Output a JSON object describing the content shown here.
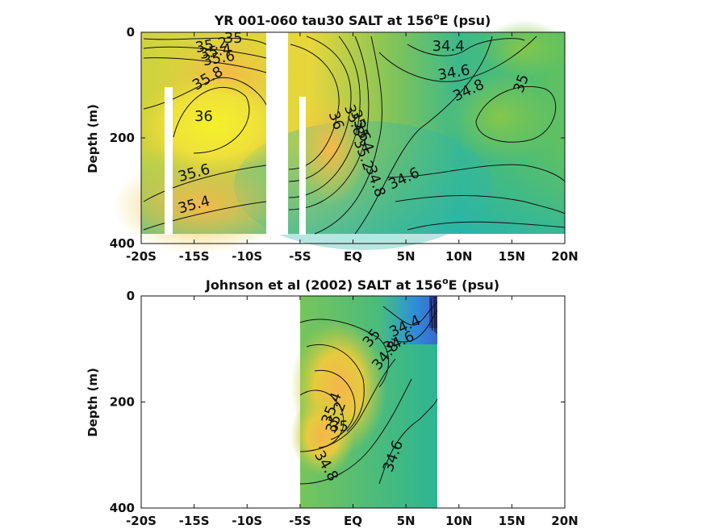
{
  "chart_data": [
    {
      "type": "heatmap",
      "title_main": "YR 001-060 tau30 SALT at 156",
      "title_sup": "o",
      "title_end": "E (psu)",
      "ylabel": "Depth (m)",
      "xticks": [
        {
          "v": -20,
          "label": "-20S"
        },
        {
          "v": -15,
          "label": "-15S"
        },
        {
          "v": -10,
          "label": "-10S"
        },
        {
          "v": -5,
          "label": "-5S"
        },
        {
          "v": 0,
          "label": "EQ"
        },
        {
          "v": 5,
          "label": "5N"
        },
        {
          "v": 10,
          "label": "10N"
        },
        {
          "v": 15,
          "label": "15N"
        },
        {
          "v": 20,
          "label": "20N"
        }
      ],
      "yticks": [
        {
          "v": 0,
          "label": "0"
        },
        {
          "v": 200,
          "label": "200"
        },
        {
          "v": 400,
          "label": "400"
        }
      ],
      "xlim": [
        -20,
        20
      ],
      "ylim": [
        400,
        0
      ],
      "data_extent": {
        "x": [
          -20,
          20
        ],
        "y": [
          0,
          385
        ]
      },
      "gaps": [
        {
          "x0": -17.6,
          "x1": -16.8,
          "y0": 105,
          "y1": 400
        },
        {
          "x0": -8.1,
          "x1": -6.2,
          "y0": 0,
          "y1": 400
        },
        {
          "x0": -5.5,
          "x1": -4.9,
          "y0": 120,
          "y1": 400
        }
      ],
      "contour_labels": [
        {
          "text": "35",
          "x": -11.3,
          "y": 20,
          "rot": 0
        },
        {
          "text": "35.2",
          "x": -13.3,
          "y": 33,
          "rot": -10
        },
        {
          "text": "35.4",
          "x": -12.9,
          "y": 45,
          "rot": -10
        },
        {
          "text": "35.6",
          "x": -12.6,
          "y": 58,
          "rot": -10
        },
        {
          "text": "35.8",
          "x": -13.5,
          "y": 95,
          "rot": -30
        },
        {
          "text": "36",
          "x": -14.1,
          "y": 168,
          "rot": 0
        },
        {
          "text": "36",
          "x": -2.0,
          "y": 170,
          "rot": 70
        },
        {
          "text": "35.8",
          "x": -0.3,
          "y": 170,
          "rot": 70
        },
        {
          "text": "35.6",
          "x": 0.3,
          "y": 180,
          "rot": 70
        },
        {
          "text": "35.4",
          "x": 0.6,
          "y": 200,
          "rot": 70
        },
        {
          "text": "35.2",
          "x": 0.6,
          "y": 235,
          "rot": 70
        },
        {
          "text": "34.8",
          "x": 1.7,
          "y": 285,
          "rot": 70
        },
        {
          "text": "34.6",
          "x": 5.0,
          "y": 285,
          "rot": -25
        },
        {
          "text": "34.4",
          "x": 9.0,
          "y": 35,
          "rot": 0
        },
        {
          "text": "34.6",
          "x": 9.6,
          "y": 85,
          "rot": -10
        },
        {
          "text": "34.8",
          "x": 11.1,
          "y": 118,
          "rot": -25
        },
        {
          "text": "35",
          "x": 16.3,
          "y": 100,
          "rot": -70
        },
        {
          "text": "35.6",
          "x": -14.9,
          "y": 275,
          "rot": -15
        },
        {
          "text": "35.4",
          "x": -14.9,
          "y": 335,
          "rot": -15
        }
      ]
    },
    {
      "type": "heatmap",
      "title_main": "Johnson et al (2002) SALT at 156",
      "title_sup": "o",
      "title_end": "E (psu)",
      "ylabel": "Depth (m)",
      "xticks": [
        {
          "v": -20,
          "label": "-20S"
        },
        {
          "v": -15,
          "label": "-15S"
        },
        {
          "v": -10,
          "label": "-10S"
        },
        {
          "v": -5,
          "label": "-5S"
        },
        {
          "v": 0,
          "label": "EQ"
        },
        {
          "v": 5,
          "label": "5N"
        },
        {
          "v": 10,
          "label": "10N"
        },
        {
          "v": 15,
          "label": "15N"
        },
        {
          "v": 20,
          "label": "20N"
        }
      ],
      "yticks": [
        {
          "v": 0,
          "label": "0"
        },
        {
          "v": 200,
          "label": "200"
        },
        {
          "v": 400,
          "label": "400"
        }
      ],
      "xlim": [
        -20,
        20
      ],
      "ylim": [
        400,
        0
      ],
      "data_extent": {
        "x": [
          -5,
          8
        ],
        "y": [
          0,
          400
        ]
      },
      "contour_labels": [
        {
          "text": "34.4",
          "x": 5.1,
          "y": 65,
          "rot": -25
        },
        {
          "text": "34.6",
          "x": 4.5,
          "y": 95,
          "rot": -25
        },
        {
          "text": "34.8",
          "x": 3.4,
          "y": 118,
          "rot": -50
        },
        {
          "text": "35",
          "x": 2.1,
          "y": 85,
          "rot": -50
        },
        {
          "text": "35.4",
          "x": -1.6,
          "y": 215,
          "rot": -70
        },
        {
          "text": "35.2",
          "x": -1.2,
          "y": 232,
          "rot": -70
        },
        {
          "text": "35",
          "x": -1.3,
          "y": 255,
          "rot": 0
        },
        {
          "text": "34.8",
          "x": -2.9,
          "y": 325,
          "rot": 60
        },
        {
          "text": "34.6",
          "x": 4.2,
          "y": 305,
          "rot": -70
        }
      ]
    }
  ]
}
